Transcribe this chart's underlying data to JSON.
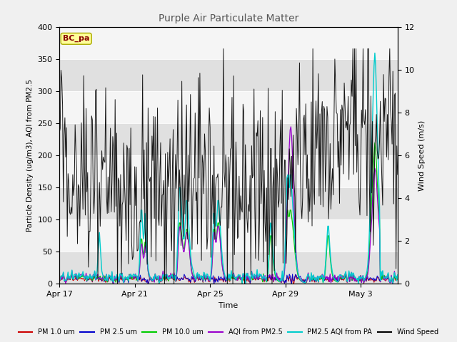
{
  "title": "Purple Air Particulate Matter",
  "ylabel_left": "Particle Density (ug/m3), AQI from PM2.5",
  "ylabel_right": "Wind Speed (m/s)",
  "xlabel": "Time",
  "ylim_left": [
    0,
    400
  ],
  "ylim_right": [
    0,
    12
  ],
  "background_color": "#f0f0f0",
  "plot_bg_light": "#f5f5f5",
  "plot_bg_dark": "#e0e0e0",
  "x_ticks": [
    "Apr 17",
    "Apr 21",
    "Apr 25",
    "Apr 29",
    "May 3"
  ],
  "x_tick_positions": [
    0,
    96,
    192,
    288,
    384
  ],
  "annotation_text": "BC_pa",
  "annotation_box_color": "#ffff99",
  "annotation_text_color": "#880000",
  "colors": {
    "pm1": "#cc0000",
    "pm25": "#0000cc",
    "pm10": "#00cc00",
    "aqi_pm25": "#9900cc",
    "pm25_aqi_pa": "#00cccc",
    "wind": "#000000"
  },
  "legend_labels": [
    "PM 1.0 um",
    "PM 2.5 um",
    "PM 10.0 um",
    "AQI from PM2.5",
    "PM2.5 AQI from PA",
    "Wind Speed"
  ],
  "n_points": 432,
  "seed": 42
}
